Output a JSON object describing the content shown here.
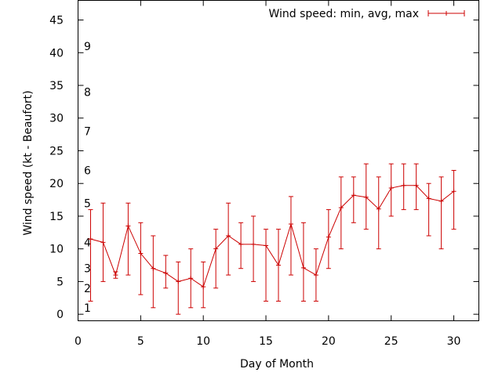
{
  "chart_data": {
    "type": "line",
    "xlabel": "Day of Month",
    "ylabel": "Wind speed (kt - Beaufort)",
    "xlim": [
      0,
      32
    ],
    "ylim": [
      -1,
      48
    ],
    "x_ticks": [
      0,
      5,
      10,
      15,
      20,
      25,
      30
    ],
    "y_ticks": [
      0,
      5,
      10,
      15,
      20,
      25,
      30,
      35,
      40,
      45
    ],
    "grid": false,
    "legend_position": "top-right",
    "beaufort_scale": [
      {
        "label": "1",
        "value": 1
      },
      {
        "label": "2",
        "value": 4
      },
      {
        "label": "3",
        "value": 7
      },
      {
        "label": "4",
        "value": 11
      },
      {
        "label": "5",
        "value": 17
      },
      {
        "label": "6",
        "value": 22
      },
      {
        "label": "7",
        "value": 28
      },
      {
        "label": "8",
        "value": 34
      },
      {
        "label": "9",
        "value": 41
      }
    ],
    "series": [
      {
        "name": "Wind speed: min, avg, max",
        "color": "#cc0000",
        "points": [
          {
            "x": 1,
            "min": 2,
            "avg": 11.5,
            "max": 16
          },
          {
            "x": 2,
            "min": 5,
            "avg": 11,
            "max": 17
          },
          {
            "x": 3,
            "min": 5.5,
            "avg": 6,
            "max": 6.5
          },
          {
            "x": 4,
            "min": 6,
            "avg": 13.5,
            "max": 17
          },
          {
            "x": 5,
            "min": 3,
            "avg": 9.3,
            "max": 14
          },
          {
            "x": 6,
            "min": 1,
            "avg": 7,
            "max": 12
          },
          {
            "x": 7,
            "min": 4,
            "avg": 6.3,
            "max": 9
          },
          {
            "x": 8,
            "min": 0,
            "avg": 5,
            "max": 8
          },
          {
            "x": 9,
            "min": 1,
            "avg": 5.5,
            "max": 10
          },
          {
            "x": 10,
            "min": 1,
            "avg": 4.2,
            "max": 8
          },
          {
            "x": 11,
            "min": 4,
            "avg": 10,
            "max": 13
          },
          {
            "x": 12,
            "min": 6,
            "avg": 12,
            "max": 17
          },
          {
            "x": 13,
            "min": 7,
            "avg": 10.7,
            "max": 14
          },
          {
            "x": 14,
            "min": 5,
            "avg": 10.7,
            "max": 15
          },
          {
            "x": 15,
            "min": 2,
            "avg": 10.5,
            "max": 13
          },
          {
            "x": 16,
            "min": 2,
            "avg": 7.5,
            "max": 13
          },
          {
            "x": 17,
            "min": 6,
            "avg": 13.8,
            "max": 18
          },
          {
            "x": 18,
            "min": 2,
            "avg": 7.1,
            "max": 14
          },
          {
            "x": 19,
            "min": 2,
            "avg": 6,
            "max": 10
          },
          {
            "x": 20,
            "min": 7,
            "avg": 11.8,
            "max": 16
          },
          {
            "x": 21,
            "min": 10,
            "avg": 16.3,
            "max": 21
          },
          {
            "x": 22,
            "min": 14,
            "avg": 18.2,
            "max": 21
          },
          {
            "x": 23,
            "min": 13,
            "avg": 17.9,
            "max": 23
          },
          {
            "x": 24,
            "min": 10,
            "avg": 16.1,
            "max": 21
          },
          {
            "x": 25,
            "min": 15,
            "avg": 19.3,
            "max": 23
          },
          {
            "x": 26,
            "min": 16,
            "avg": 19.7,
            "max": 23
          },
          {
            "x": 27,
            "min": 16,
            "avg": 19.7,
            "max": 23
          },
          {
            "x": 28,
            "min": 12,
            "avg": 17.7,
            "max": 20
          },
          {
            "x": 29,
            "min": 10,
            "avg": 17.3,
            "max": 21
          },
          {
            "x": 30,
            "min": 13,
            "avg": 18.8,
            "max": 22
          }
        ]
      }
    ]
  }
}
